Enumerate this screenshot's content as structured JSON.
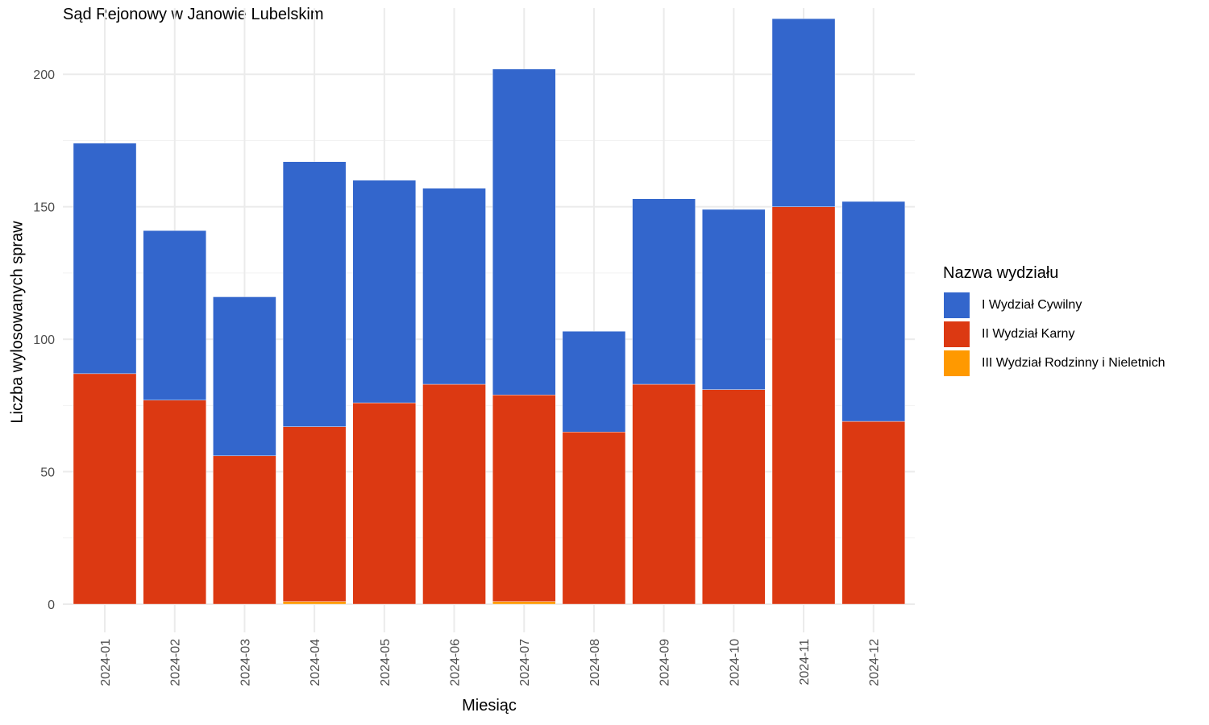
{
  "chart_data": {
    "type": "bar",
    "stacked": true,
    "title": "Sąd Rejonowy w Janowie Lubelskim",
    "xlabel": "Miesiąc",
    "ylabel": "Liczba wylosowanych spraw",
    "ylim": [
      0,
      225
    ],
    "yticks": [
      0,
      50,
      100,
      150,
      200
    ],
    "grid": true,
    "legend_title": "Nazwa wydziału",
    "legend_position": "right",
    "categories": [
      "2024-01",
      "2024-02",
      "2024-03",
      "2024-04",
      "2024-05",
      "2024-06",
      "2024-07",
      "2024-08",
      "2024-09",
      "2024-10",
      "2024-11",
      "2024-12"
    ],
    "series": [
      {
        "name": "III Wydział Rodzinny i Nieletnich",
        "color": "#FF9900",
        "values": [
          0,
          0,
          0,
          1,
          0,
          0,
          1,
          0,
          0,
          0,
          0,
          0
        ]
      },
      {
        "name": "II Wydział Karny",
        "color": "#DC3912",
        "values": [
          87,
          77,
          56,
          66,
          76,
          83,
          78,
          65,
          83,
          81,
          150,
          69
        ]
      },
      {
        "name": "I Wydział Cywilny",
        "color": "#3366CC",
        "values": [
          87,
          64,
          60,
          100,
          84,
          74,
          123,
          38,
          70,
          68,
          71,
          83
        ]
      }
    ],
    "legend_order": [
      "I Wydział Cywilny",
      "II Wydział Karny",
      "III Wydział Rodzinny i Nieletnich"
    ]
  }
}
